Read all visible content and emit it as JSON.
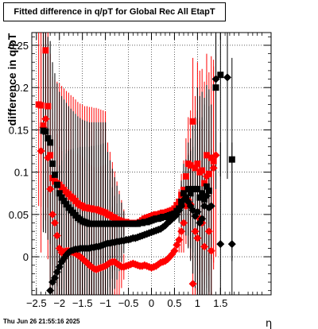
{
  "chart_data": {
    "type": "scatter",
    "title": "Fitted difference in q/pT for Global Rec All EtapT",
    "xlabel": "η",
    "ylabel": "difference in q/pT",
    "xlim": [
      -2.6,
      2.6
    ],
    "ylim": [
      -0.045,
      0.265
    ],
    "xticks": [
      "−2.5",
      "−2",
      "−1.5",
      "−1",
      "−0.5",
      "0",
      "0.5",
      "1",
      "1.5"
    ],
    "yticks": [
      "0",
      "0.05",
      "0.1",
      "0.15",
      "0.2",
      "0.25"
    ],
    "xtick_values": [
      -2.5,
      -2,
      -1.5,
      -1,
      -0.5,
      0,
      0.5,
      1,
      1.5
    ],
    "ytick_values": [
      0,
      0.05,
      0.1,
      0.15,
      0.2,
      0.25
    ],
    "grid": true,
    "series": [
      {
        "marker": "square",
        "color": "#ff0000",
        "points": [
          [
            -2.45,
            0.18
          ],
          [
            -2.4,
            0.179
          ],
          [
            -2.35,
            0.155
          ],
          [
            -2.3,
            0.244
          ],
          [
            -2.25,
            0.178
          ],
          [
            -2.2,
            0.12
          ],
          [
            -2.15,
            0.093
          ],
          [
            -2.1,
            0.089
          ],
          [
            -2.05,
            0.087
          ],
          [
            -2.0,
            0.085
          ],
          [
            -1.95,
            0.082
          ],
          [
            -1.9,
            0.079
          ],
          [
            -1.85,
            0.076
          ],
          [
            -1.8,
            0.074
          ],
          [
            -1.75,
            0.071
          ],
          [
            -1.7,
            0.069
          ],
          [
            -1.65,
            0.066
          ],
          [
            -1.6,
            0.063
          ],
          [
            -1.55,
            0.061
          ],
          [
            -1.5,
            0.06
          ],
          [
            -1.45,
            0.058
          ],
          [
            -1.4,
            0.058
          ],
          [
            -1.35,
            0.057
          ],
          [
            -1.3,
            0.057
          ],
          [
            -1.25,
            0.056
          ],
          [
            -1.2,
            0.056
          ],
          [
            -1.15,
            0.055
          ],
          [
            -1.1,
            0.054
          ],
          [
            -1.05,
            0.053
          ],
          [
            -1.0,
            0.052
          ],
          [
            -0.95,
            0.05
          ],
          [
            -0.9,
            0.049
          ],
          [
            -0.85,
            0.047
          ],
          [
            -0.8,
            0.046
          ],
          [
            -0.75,
            0.044
          ],
          [
            -0.7,
            0.043
          ],
          [
            -0.65,
            0.042
          ],
          [
            -0.6,
            0.041
          ],
          [
            -0.55,
            0.041
          ],
          [
            -0.5,
            0.04
          ],
          [
            -0.45,
            0.04
          ],
          [
            -0.4,
            0.04
          ],
          [
            -0.35,
            0.04
          ],
          [
            -0.3,
            0.04
          ],
          [
            -0.25,
            0.041
          ],
          [
            -0.2,
            0.043
          ],
          [
            -0.15,
            0.045
          ],
          [
            -0.1,
            0.046
          ],
          [
            -0.05,
            0.047
          ],
          [
            0.0,
            0.048
          ],
          [
            0.05,
            0.049
          ],
          [
            0.1,
            0.05
          ],
          [
            0.15,
            0.05
          ],
          [
            0.2,
            0.051
          ],
          [
            0.25,
            0.052
          ],
          [
            0.3,
            0.052
          ],
          [
            0.35,
            0.053
          ],
          [
            0.4,
            0.054
          ],
          [
            0.45,
            0.055
          ],
          [
            0.5,
            0.057
          ],
          [
            0.55,
            0.061
          ],
          [
            0.6,
            0.065
          ],
          [
            0.65,
            0.073
          ],
          [
            0.7,
            0.079
          ],
          [
            0.75,
            0.095
          ],
          [
            0.8,
            0.11
          ],
          [
            0.85,
            0.108
          ],
          [
            0.9,
            0.16
          ],
          [
            0.95,
            0.105
          ],
          [
            1.0,
            0.11
          ],
          [
            1.05,
            0.1
          ],
          [
            1.1,
            0.102
          ],
          [
            1.15,
            0.087
          ],
          [
            1.2,
            0.12
          ],
          [
            1.25,
            0.098
          ],
          [
            1.3,
            0.117
          ],
          [
            1.35,
            0.113
          ]
        ]
      },
      {
        "marker": "diamond",
        "color": "#ff0000",
        "points": [
          [
            -2.4,
            0.125
          ],
          [
            -2.35,
            0.153
          ],
          [
            -2.3,
            0.163
          ],
          [
            -2.25,
            0.117
          ],
          [
            -2.2,
            0.08
          ],
          [
            -2.15,
            0.05
          ],
          [
            -2.1,
            0.04
          ],
          [
            -2.05,
            0.025
          ],
          [
            -2.0,
            0.01
          ],
          [
            -1.95,
            0.005
          ],
          [
            -1.9,
            0.006
          ],
          [
            -1.85,
            0.007
          ],
          [
            -1.8,
            0.007
          ],
          [
            -1.75,
            0.006
          ],
          [
            -1.7,
            0.005
          ],
          [
            -1.65,
            0.004
          ],
          [
            -1.6,
            0.002
          ],
          [
            -1.55,
            0.0
          ],
          [
            -1.5,
            -0.002
          ],
          [
            -1.45,
            -0.005
          ],
          [
            -1.4,
            -0.007
          ],
          [
            -1.35,
            -0.01
          ],
          [
            -1.3,
            -0.012
          ],
          [
            -1.25,
            -0.014
          ],
          [
            -1.2,
            -0.015
          ],
          [
            -1.15,
            -0.014
          ],
          [
            -1.1,
            -0.013
          ],
          [
            -1.05,
            -0.012
          ],
          [
            -1.0,
            -0.011
          ],
          [
            -0.95,
            -0.009
          ],
          [
            -0.9,
            -0.007
          ],
          [
            -0.85,
            -0.006
          ],
          [
            -0.8,
            -0.006
          ],
          [
            -0.75,
            -0.008
          ],
          [
            -0.7,
            -0.01
          ],
          [
            -0.65,
            -0.012
          ],
          [
            -0.6,
            -0.012
          ],
          [
            -0.55,
            -0.011
          ],
          [
            -0.5,
            -0.01
          ],
          [
            -0.45,
            -0.009
          ],
          [
            -0.4,
            -0.008
          ],
          [
            -0.35,
            -0.009
          ],
          [
            -0.3,
            -0.01
          ],
          [
            -0.25,
            -0.011
          ],
          [
            -0.2,
            -0.011
          ],
          [
            -0.15,
            -0.01
          ],
          [
            -0.1,
            -0.011
          ],
          [
            -0.05,
            -0.012
          ],
          [
            0.0,
            -0.013
          ],
          [
            0.05,
            -0.012
          ],
          [
            0.1,
            -0.011
          ],
          [
            0.15,
            -0.009
          ],
          [
            0.2,
            -0.007
          ],
          [
            0.25,
            -0.006
          ],
          [
            0.3,
            -0.005
          ],
          [
            0.35,
            -0.003
          ],
          [
            0.4,
            0.0
          ],
          [
            0.45,
            0.003
          ],
          [
            0.5,
            0.007
          ],
          [
            0.55,
            0.014
          ],
          [
            0.6,
            0.02
          ],
          [
            0.65,
            0.03
          ],
          [
            0.7,
            0.04
          ],
          [
            0.75,
            0.06
          ],
          [
            0.8,
            0.067
          ],
          [
            0.85,
            0.062
          ],
          [
            0.9,
            -0.032
          ],
          [
            0.95,
            0.03
          ],
          [
            1.0,
            0.022
          ],
          [
            1.05,
            0.045
          ],
          [
            1.1,
            0.04
          ],
          [
            1.15,
            0.012
          ],
          [
            1.2,
            0.095
          ],
          [
            1.25,
            0.03
          ],
          [
            1.3,
            0.007
          ],
          [
            1.35,
            0.105
          ],
          [
            1.4,
            0.12
          ]
        ]
      },
      {
        "marker": "square",
        "color": "#000000",
        "points": [
          [
            -2.35,
            0.149
          ],
          [
            -2.3,
            0.148
          ],
          [
            -2.25,
            0.14
          ],
          [
            -2.2,
            0.135
          ],
          [
            -2.15,
            0.11
          ],
          [
            -2.1,
            0.097
          ],
          [
            -2.05,
            0.085
          ],
          [
            -2.0,
            0.075
          ],
          [
            -1.95,
            0.07
          ],
          [
            -1.9,
            0.066
          ],
          [
            -1.85,
            0.062
          ],
          [
            -1.8,
            0.058
          ],
          [
            -1.75,
            0.055
          ],
          [
            -1.7,
            0.052
          ],
          [
            -1.65,
            0.049
          ],
          [
            -1.6,
            0.046
          ],
          [
            -1.55,
            0.044
          ],
          [
            -1.5,
            0.042
          ],
          [
            -1.45,
            0.041
          ],
          [
            -1.4,
            0.04
          ],
          [
            -1.35,
            0.039
          ],
          [
            -1.3,
            0.039
          ],
          [
            -1.25,
            0.039
          ],
          [
            -1.2,
            0.039
          ],
          [
            -1.15,
            0.039
          ],
          [
            -1.1,
            0.039
          ],
          [
            -1.05,
            0.039
          ],
          [
            -1.0,
            0.039
          ],
          [
            -0.95,
            0.039
          ],
          [
            -0.9,
            0.039
          ],
          [
            -0.85,
            0.039
          ],
          [
            -0.8,
            0.039
          ],
          [
            -0.75,
            0.039
          ],
          [
            -0.7,
            0.039
          ],
          [
            -0.65,
            0.039
          ],
          [
            -0.6,
            0.039
          ],
          [
            -0.55,
            0.039
          ],
          [
            -0.5,
            0.039
          ],
          [
            -0.45,
            0.039
          ],
          [
            -0.4,
            0.039
          ],
          [
            -0.35,
            0.039
          ],
          [
            -0.3,
            0.039
          ],
          [
            -0.25,
            0.04
          ],
          [
            -0.2,
            0.04
          ],
          [
            -0.15,
            0.041
          ],
          [
            -0.1,
            0.041
          ],
          [
            -0.05,
            0.042
          ],
          [
            0.0,
            0.043
          ],
          [
            0.05,
            0.044
          ],
          [
            0.1,
            0.045
          ],
          [
            0.15,
            0.045
          ],
          [
            0.2,
            0.046
          ],
          [
            0.25,
            0.047
          ],
          [
            0.3,
            0.047
          ],
          [
            0.35,
            0.048
          ],
          [
            0.4,
            0.049
          ],
          [
            0.45,
            0.05
          ],
          [
            0.5,
            0.051
          ],
          [
            0.55,
            0.054
          ],
          [
            0.6,
            0.057
          ],
          [
            0.65,
            0.065
          ],
          [
            0.7,
            0.075
          ],
          [
            0.75,
            0.07
          ],
          [
            0.8,
            0.08
          ],
          [
            0.85,
            0.075
          ],
          [
            0.9,
            0.08
          ],
          [
            0.95,
            0.08
          ],
          [
            1.0,
            0.08
          ],
          [
            1.05,
            0.07
          ],
          [
            1.1,
            0.075
          ],
          [
            1.15,
            0.068
          ],
          [
            1.2,
            0.083
          ],
          [
            1.25,
            0.078
          ],
          [
            1.4,
            0.2
          ],
          [
            1.5,
            0.215
          ],
          [
            1.75,
            0.115
          ]
        ]
      },
      {
        "marker": "diamond",
        "color": "#000000",
        "points": [
          [
            -2.2,
            -0.04
          ],
          [
            -2.15,
            -0.03
          ],
          [
            -2.1,
            -0.025
          ],
          [
            -2.05,
            -0.018
          ],
          [
            -2.0,
            -0.012
          ],
          [
            -1.95,
            -0.006
          ],
          [
            -1.9,
            -0.002
          ],
          [
            -1.85,
            0.002
          ],
          [
            -1.8,
            0.005
          ],
          [
            -1.75,
            0.007
          ],
          [
            -1.7,
            0.008
          ],
          [
            -1.65,
            0.009
          ],
          [
            -1.6,
            0.009
          ],
          [
            -1.55,
            0.01
          ],
          [
            -1.5,
            0.01
          ],
          [
            -1.45,
            0.01
          ],
          [
            -1.4,
            0.01
          ],
          [
            -1.35,
            0.01
          ],
          [
            -1.3,
            0.011
          ],
          [
            -1.25,
            0.011
          ],
          [
            -1.2,
            0.012
          ],
          [
            -1.15,
            0.012
          ],
          [
            -1.1,
            0.013
          ],
          [
            -1.05,
            0.014
          ],
          [
            -1.0,
            0.015
          ],
          [
            -0.95,
            0.016
          ],
          [
            -0.9,
            0.016
          ],
          [
            -0.85,
            0.017
          ],
          [
            -0.8,
            0.017
          ],
          [
            -0.75,
            0.018
          ],
          [
            -0.7,
            0.018
          ],
          [
            -0.65,
            0.019
          ],
          [
            -0.6,
            0.019
          ],
          [
            -0.55,
            0.02
          ],
          [
            -0.5,
            0.02
          ],
          [
            -0.45,
            0.021
          ],
          [
            -0.4,
            0.022
          ],
          [
            -0.35,
            0.022
          ],
          [
            -0.3,
            0.023
          ],
          [
            -0.25,
            0.024
          ],
          [
            -0.2,
            0.025
          ],
          [
            -0.15,
            0.026
          ],
          [
            -0.1,
            0.027
          ],
          [
            -0.05,
            0.028
          ],
          [
            0.0,
            0.029
          ],
          [
            0.05,
            0.03
          ],
          [
            0.1,
            0.031
          ],
          [
            0.15,
            0.032
          ],
          [
            0.2,
            0.033
          ],
          [
            0.25,
            0.035
          ],
          [
            0.3,
            0.037
          ],
          [
            0.35,
            0.04
          ],
          [
            0.4,
            0.042
          ],
          [
            0.45,
            0.045
          ],
          [
            0.5,
            0.047
          ],
          [
            0.55,
            0.05
          ],
          [
            0.6,
            0.055
          ],
          [
            0.65,
            0.06
          ],
          [
            0.7,
            0.067
          ],
          [
            0.75,
            0.07
          ],
          [
            0.8,
            0.065
          ],
          [
            0.85,
            0.06
          ],
          [
            0.9,
            0.055
          ],
          [
            0.95,
            0.048
          ],
          [
            1.0,
            0.053
          ],
          [
            1.05,
            0.04
          ],
          [
            1.1,
            0.045
          ],
          [
            1.15,
            0.06
          ],
          [
            1.2,
            0.072
          ],
          [
            1.25,
            0.058
          ],
          [
            1.3,
            0.06
          ],
          [
            1.4,
            0.21
          ],
          [
            1.5,
            0.015
          ],
          [
            1.65,
            0.212
          ],
          [
            1.75,
            0.015
          ]
        ]
      }
    ]
  },
  "footer": {
    "date": "Thu Jun 26 21:55:16 2025"
  }
}
